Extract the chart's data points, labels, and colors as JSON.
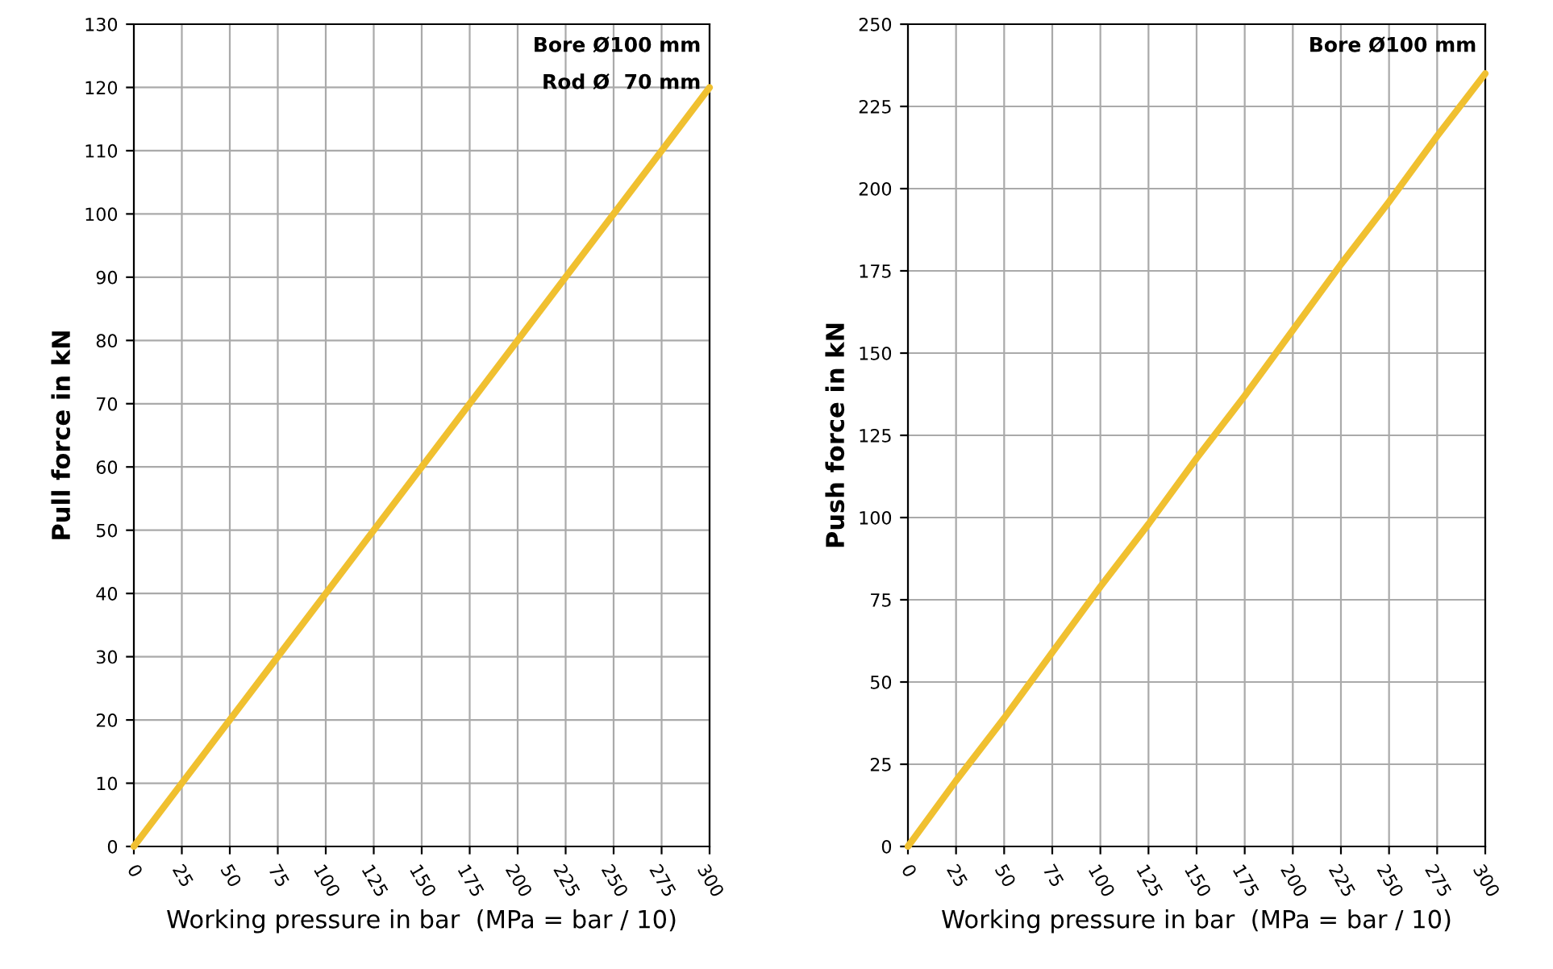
{
  "chart_data": [
    {
      "type": "line",
      "x": [
        0,
        25,
        50,
        75,
        100,
        125,
        150,
        175,
        200,
        225,
        250,
        275,
        300
      ],
      "values": [
        0,
        10,
        20,
        30,
        40,
        50,
        60,
        70,
        80,
        90,
        100,
        110,
        120
      ],
      "color": "#f0c030",
      "xlim": [
        0,
        300
      ],
      "xticks": [
        0,
        25,
        50,
        75,
        100,
        125,
        150,
        175,
        200,
        225,
        250,
        275,
        300
      ],
      "ylim": [
        0,
        130
      ],
      "yticks": [
        0,
        10,
        20,
        30,
        40,
        50,
        60,
        70,
        80,
        90,
        100,
        110,
        120,
        130
      ],
      "xlabel": "Working pressure in bar  (MPa = bar / 10)",
      "ylabel": "Pull force in kN",
      "annotations": [
        "Bore Ø100 mm",
        "Rod Ø  70 mm"
      ],
      "grid": true
    },
    {
      "type": "line",
      "x": [
        0,
        25,
        50,
        75,
        100,
        125,
        150,
        175,
        200,
        225,
        250,
        275,
        300
      ],
      "values": [
        0,
        20,
        39,
        59,
        79,
        98,
        118,
        137,
        157,
        177,
        196,
        216,
        235
      ],
      "color": "#f0c030",
      "xlim": [
        0,
        300
      ],
      "xticks": [
        0,
        25,
        50,
        75,
        100,
        125,
        150,
        175,
        200,
        225,
        250,
        275,
        300
      ],
      "ylim": [
        0,
        250
      ],
      "yticks": [
        0,
        25,
        50,
        75,
        100,
        125,
        150,
        175,
        200,
        225,
        250
      ],
      "xlabel": "Working pressure in bar  (MPa = bar / 10)",
      "ylabel": "Push force in kN",
      "annotations": [
        "Bore Ø100 mm"
      ],
      "grid": true
    }
  ]
}
